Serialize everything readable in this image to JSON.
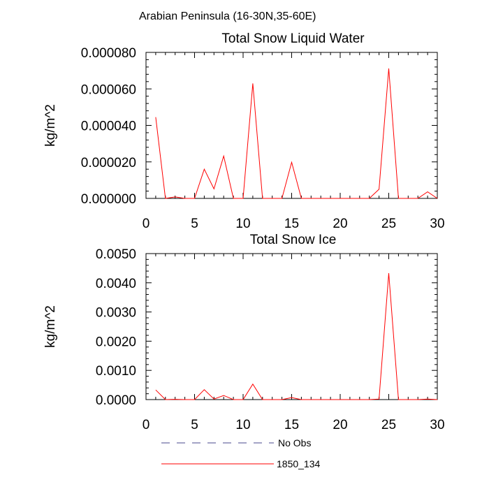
{
  "suptitle": "Arabian Peninsula (16-30N,35-60E)",
  "legend": [
    {
      "label": "No Obs",
      "color": "#4a4a8c",
      "style": "dashed"
    },
    {
      "label": "1850_134",
      "color": "#ff0000",
      "style": "solid"
    }
  ],
  "chart_data": [
    {
      "type": "line",
      "title": "Total Snow Liquid Water",
      "xlabel": "",
      "ylabel": "kg/m^2",
      "xlim": [
        0,
        30
      ],
      "ylim": [
        0,
        8e-05
      ],
      "xticks": [
        0,
        5,
        10,
        15,
        20,
        25,
        30
      ],
      "xtick_labels": [
        "0",
        "5",
        "10",
        "15",
        "20",
        "25",
        "30"
      ],
      "yticks": [
        0,
        2e-05,
        4e-05,
        6e-05,
        8e-05
      ],
      "ytick_labels": [
        "0.000000",
        "0.000020",
        "0.000040",
        "0.000060",
        "0.000080"
      ],
      "grid": false,
      "series": [
        {
          "name": "1850_134",
          "color": "#ff0000",
          "x": [
            1,
            2,
            3,
            4,
            5,
            6,
            7,
            8,
            9,
            10,
            11,
            12,
            13,
            14,
            15,
            16,
            17,
            18,
            19,
            20,
            21,
            22,
            23,
            24,
            25,
            26,
            27,
            28,
            29,
            30
          ],
          "y": [
            4.45e-05,
            0,
            8e-07,
            0,
            0,
            1.6e-05,
            5.2e-06,
            2.32e-05,
            0,
            0,
            6.3e-05,
            0,
            0,
            0,
            1.98e-05,
            0,
            0,
            0,
            0,
            0,
            0,
            0,
            0,
            5e-06,
            7.12e-05,
            0,
            0,
            0,
            3.6e-06,
            0
          ]
        }
      ]
    },
    {
      "type": "line",
      "title": "Total Snow Ice",
      "xlabel": "",
      "ylabel": "kg/m^2",
      "xlim": [
        0,
        30
      ],
      "ylim": [
        0,
        0.005
      ],
      "xticks": [
        0,
        5,
        10,
        15,
        20,
        25,
        30
      ],
      "xtick_labels": [
        "0",
        "5",
        "10",
        "15",
        "20",
        "25",
        "30"
      ],
      "yticks": [
        0,
        0.001,
        0.002,
        0.003,
        0.004,
        0.005
      ],
      "ytick_labels": [
        "0.0000",
        "0.0010",
        "0.0020",
        "0.0030",
        "0.0040",
        "0.0050"
      ],
      "grid": false,
      "series": [
        {
          "name": "1850_134",
          "color": "#ff0000",
          "x": [
            1,
            2,
            3,
            4,
            5,
            6,
            7,
            8,
            9,
            10,
            11,
            12,
            13,
            14,
            15,
            16,
            17,
            18,
            19,
            20,
            21,
            22,
            23,
            24,
            25,
            26,
            27,
            28,
            29,
            30
          ],
          "y": [
            0.00033,
            0,
            1e-05,
            0,
            0,
            0.00034,
            2e-05,
            0.00014,
            0,
            0,
            0.00053,
            0,
            0,
            0,
            7e-05,
            0,
            0,
            0,
            0,
            0,
            0,
            0,
            0,
            2e-05,
            0.00433,
            0,
            0,
            0,
            2e-05,
            0
          ]
        }
      ]
    }
  ]
}
